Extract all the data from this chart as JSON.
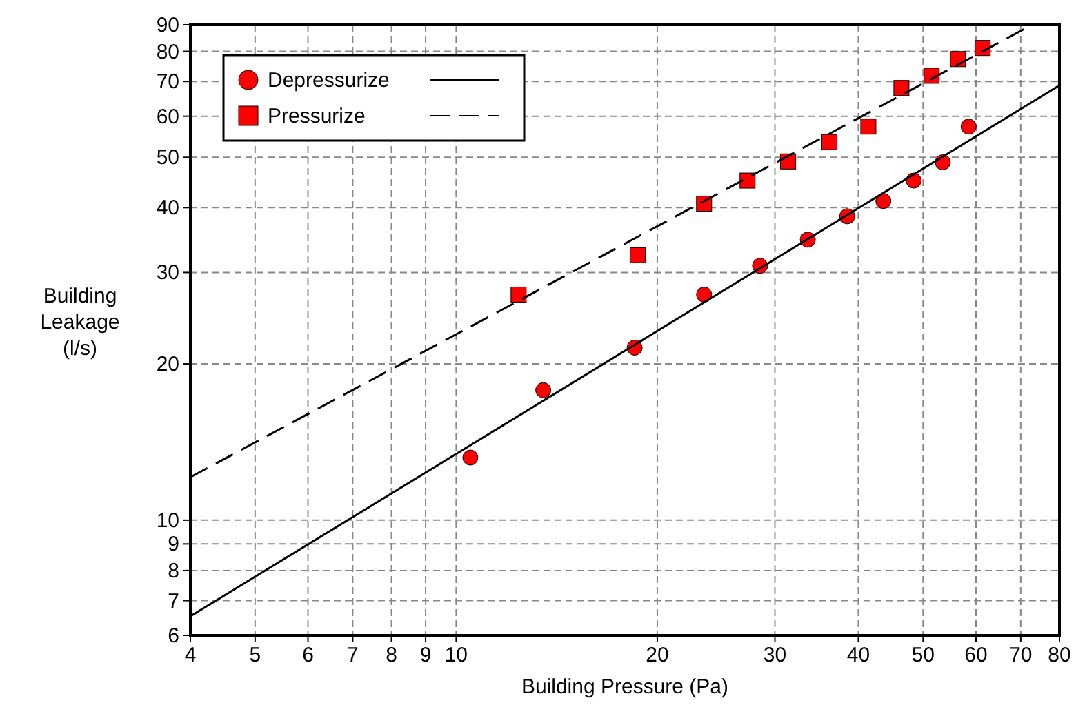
{
  "chart_data": {
    "type": "scatter",
    "xlabel": "Building Pressure (Pa)",
    "ylabel": "Building Leakage (l/s)",
    "log": "xy",
    "grid": true,
    "legend": "top left",
    "xlim": [
      4,
      80
    ],
    "xticks": [
      4,
      5,
      6,
      7,
      8,
      9,
      10,
      20,
      30,
      40,
      50,
      60,
      70,
      80
    ],
    "ylim": [
      6,
      90
    ],
    "yticks": [
      6,
      7,
      8,
      9,
      10,
      20,
      30,
      40,
      50,
      60,
      70,
      80,
      90
    ],
    "series": [
      {
        "name": "Depressurize",
        "marker": "circle",
        "line_style": "solid",
        "color": "#ff0000",
        "x": [
          10.5,
          13.5,
          18.5,
          23.5,
          28.5,
          33.6,
          38.5,
          43.6,
          48.4,
          53.5,
          58.5
        ],
        "values": [
          13.2,
          17.8,
          21.5,
          27.2,
          30.9,
          34.7,
          38.5,
          41.2,
          45.1,
          48.9,
          57.3
        ]
      },
      {
        "name": "Pressurize",
        "marker": "square",
        "line_style": "dashed",
        "color": "#ff0000",
        "x": [
          12.4,
          18.7,
          23.5,
          27.3,
          31.4,
          36.2,
          41.4,
          46.4,
          51.5,
          56.4,
          61.4
        ],
        "values": [
          27.2,
          32.4,
          40.7,
          45.1,
          49.1,
          53.5,
          57.3,
          68,
          71.8,
          77.3,
          81.2
        ]
      },
      {
        "type": "line",
        "line_style": "solid",
        "color": "#000000",
        "x": [
          4,
          80
        ],
        "values": [
          6.53,
          68.8
        ]
      },
      {
        "type": "line",
        "line_style": "dashed",
        "color": "#000000",
        "x": [
          4,
          72.8
        ],
        "values": [
          12.1,
          90
        ]
      }
    ]
  }
}
